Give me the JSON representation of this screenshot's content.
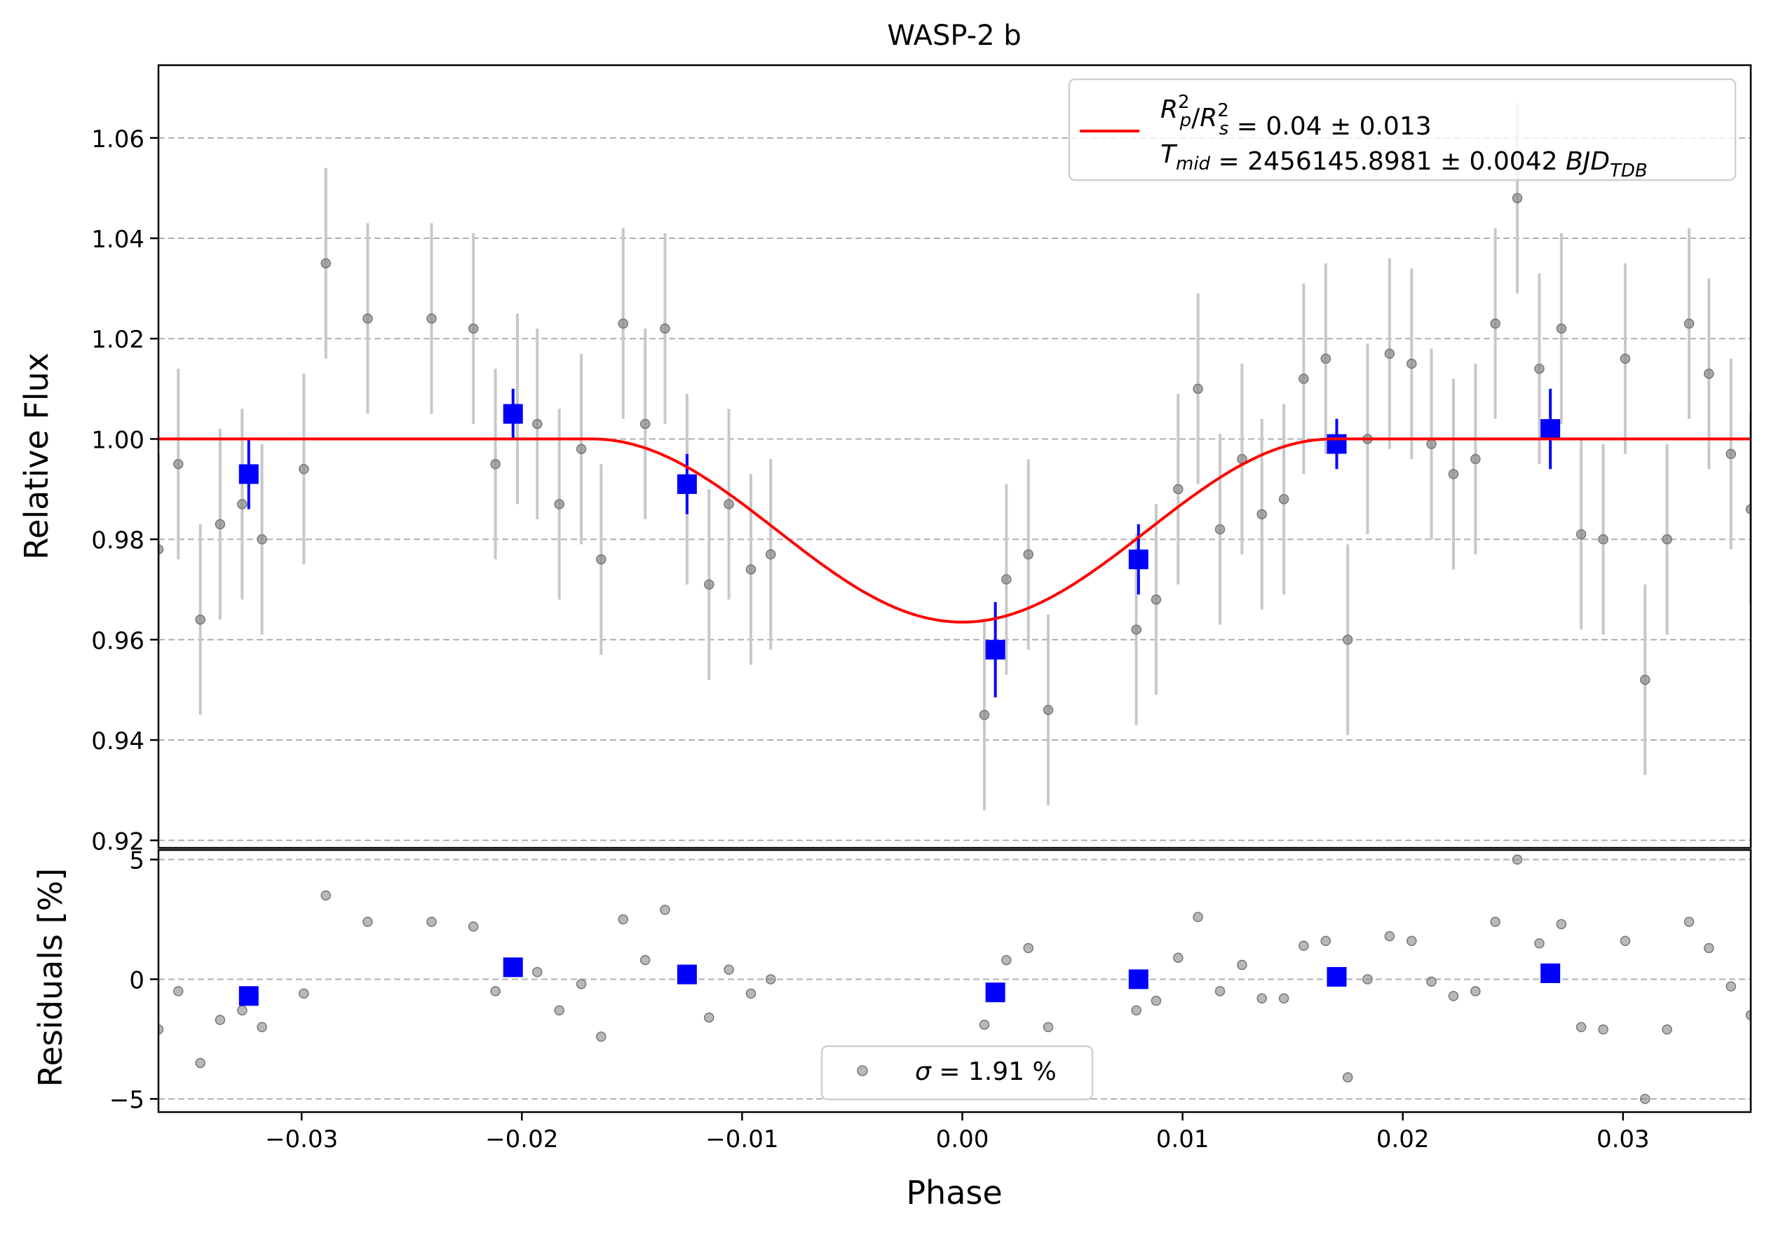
{
  "chart_data": [
    {
      "type": "scatter",
      "panel": "main",
      "title": "WASP-2 b",
      "xlabel": "",
      "ylabel": "Relative Flux",
      "xlim": [
        -0.0365,
        0.0358
      ],
      "ylim": [
        0.9185,
        1.0745
      ],
      "yticks": [
        0.92,
        0.94,
        0.96,
        0.98,
        1.0,
        1.02,
        1.04,
        1.06
      ],
      "ytick_labels": [
        "0.92",
        "0.94",
        "0.96",
        "0.98",
        "1.00",
        "1.02",
        "1.04",
        "1.06"
      ],
      "grid": "y-dashed",
      "legend": {
        "position": "top-right",
        "line1": "R_p^2/R_s^2 = 0.04 ± 0.013",
        "line2": "T_mid = 2456145.8981 ± 0.0042 BJD_TDB",
        "model_color": "#ff0000"
      },
      "colors": {
        "raw": "#888888",
        "raw_err": "#c8c8c8",
        "binned": "#0000ff",
        "model": "#ff0000"
      },
      "series": [
        {
          "kind": "raw",
          "error": 0.019,
          "points": [
            [
              -0.0365,
              0.978
            ],
            [
              -0.0356,
              0.995
            ],
            [
              -0.0346,
              0.964
            ],
            [
              -0.0337,
              0.983
            ],
            [
              -0.0327,
              0.987
            ],
            [
              -0.0318,
              0.98
            ],
            [
              -0.0299,
              0.994
            ],
            [
              -0.0289,
              1.035
            ],
            [
              -0.027,
              1.024
            ],
            [
              -0.0241,
              1.024
            ],
            [
              -0.0222,
              1.022
            ],
            [
              -0.0212,
              0.995
            ],
            [
              -0.0202,
              1.006
            ],
            [
              -0.0193,
              1.003
            ],
            [
              -0.0183,
              0.987
            ],
            [
              -0.0173,
              0.998
            ],
            [
              -0.0164,
              0.976
            ],
            [
              -0.0154,
              1.023
            ],
            [
              -0.0144,
              1.003
            ],
            [
              -0.0135,
              1.022
            ],
            [
              -0.0125,
              0.99
            ],
            [
              -0.0115,
              0.971
            ],
            [
              -0.0106,
              0.987
            ],
            [
              -0.0096,
              0.974
            ],
            [
              -0.0087,
              0.977
            ],
            [
              0.001,
              0.945
            ],
            [
              0.002,
              0.972
            ],
            [
              0.003,
              0.977
            ],
            [
              0.0039,
              0.946
            ],
            [
              0.0079,
              0.962
            ],
            [
              0.0088,
              0.968
            ],
            [
              0.0098,
              0.99
            ],
            [
              0.0107,
              1.01
            ],
            [
              0.0117,
              0.982
            ],
            [
              0.0127,
              0.996
            ],
            [
              0.0136,
              0.985
            ],
            [
              0.0146,
              0.988
            ],
            [
              0.0155,
              1.012
            ],
            [
              0.0165,
              1.016
            ],
            [
              0.0175,
              0.96
            ],
            [
              0.0184,
              1.0
            ],
            [
              0.0194,
              1.017
            ],
            [
              0.0204,
              1.015
            ],
            [
              0.0213,
              0.999
            ],
            [
              0.0223,
              0.993
            ],
            [
              0.0233,
              0.996
            ],
            [
              0.0242,
              1.023
            ],
            [
              0.0252,
              1.048
            ],
            [
              0.0262,
              1.014
            ],
            [
              0.0272,
              1.022
            ],
            [
              0.0281,
              0.981
            ],
            [
              0.0291,
              0.98
            ],
            [
              0.0301,
              1.016
            ],
            [
              0.031,
              0.952
            ],
            [
              0.032,
              0.98
            ],
            [
              0.033,
              1.023
            ],
            [
              0.0339,
              1.013
            ],
            [
              0.0349,
              0.997
            ],
            [
              0.0358,
              0.986
            ]
          ]
        },
        {
          "kind": "binned",
          "points": [
            [
              -0.0324,
              0.993,
              0.007
            ],
            [
              -0.0204,
              1.005,
              0.005
            ],
            [
              -0.0125,
              0.991,
              0.006
            ],
            [
              0.0015,
              0.958,
              0.0095
            ],
            [
              0.008,
              0.976,
              0.007
            ],
            [
              0.017,
              0.999,
              0.005
            ],
            [
              0.0267,
              1.002,
              0.008
            ]
          ]
        },
        {
          "kind": "model",
          "baseline": 1.0,
          "depth": 0.0365,
          "t1": -0.0168,
          "t2": 0.0168
        }
      ]
    },
    {
      "type": "scatter",
      "panel": "residuals",
      "xlabel": "Phase",
      "ylabel": "Residuals [%]",
      "xlim": [
        -0.0365,
        0.0358
      ],
      "ylim": [
        -5.55,
        5.4
      ],
      "yticks": [
        -5,
        0,
        5
      ],
      "ytick_labels": [
        "−5",
        "0",
        "5"
      ],
      "xticks": [
        -0.03,
        -0.02,
        -0.01,
        0.0,
        0.01,
        0.02,
        0.03
      ],
      "xtick_labels": [
        "−0.03",
        "−0.02",
        "−0.01",
        "0.00",
        "0.01",
        "0.02",
        "0.03"
      ],
      "grid": "y-dashed",
      "legend": {
        "position": "lower-center",
        "label": "σ = 1.91 %"
      },
      "raw_points": [
        [
          -0.0365,
          -2.1
        ],
        [
          -0.0356,
          -0.5
        ],
        [
          -0.0346,
          -3.5
        ],
        [
          -0.0337,
          -1.7
        ],
        [
          -0.0327,
          -1.3
        ],
        [
          -0.0318,
          -2.0
        ],
        [
          -0.0299,
          -0.6
        ],
        [
          -0.0289,
          3.5
        ],
        [
          -0.027,
          2.4
        ],
        [
          -0.0241,
          2.4
        ],
        [
          -0.0222,
          2.2
        ],
        [
          -0.0212,
          -0.5
        ],
        [
          -0.0193,
          0.3
        ],
        [
          -0.0183,
          -1.3
        ],
        [
          -0.0173,
          -0.2
        ],
        [
          -0.0164,
          -2.4
        ],
        [
          -0.0154,
          2.5
        ],
        [
          -0.0144,
          0.8
        ],
        [
          -0.0135,
          2.9
        ],
        [
          -0.0115,
          -1.6
        ],
        [
          -0.0106,
          0.4
        ],
        [
          -0.0096,
          -0.6
        ],
        [
          -0.0087,
          0.0
        ],
        [
          0.001,
          -1.9
        ],
        [
          0.002,
          0.8
        ],
        [
          0.003,
          1.3
        ],
        [
          0.0039,
          -2.0
        ],
        [
          0.0079,
          -1.3
        ],
        [
          0.0088,
          -0.9
        ],
        [
          0.0098,
          0.9
        ],
        [
          0.0107,
          2.6
        ],
        [
          0.0117,
          -0.5
        ],
        [
          0.0127,
          0.6
        ],
        [
          0.0136,
          -0.8
        ],
        [
          0.0146,
          -0.8
        ],
        [
          0.0155,
          1.4
        ],
        [
          0.0165,
          1.6
        ],
        [
          0.0175,
          -4.1
        ],
        [
          0.0184,
          0.0
        ],
        [
          0.0194,
          1.8
        ],
        [
          0.0204,
          1.6
        ],
        [
          0.0213,
          -0.1
        ],
        [
          0.0223,
          -0.7
        ],
        [
          0.0233,
          -0.5
        ],
        [
          0.0242,
          2.4
        ],
        [
          0.0252,
          5.0
        ],
        [
          0.0262,
          1.5
        ],
        [
          0.0272,
          2.3
        ],
        [
          0.0281,
          -2.0
        ],
        [
          0.0291,
          -2.1
        ],
        [
          0.0301,
          1.6
        ],
        [
          0.031,
          -5.0
        ],
        [
          0.032,
          -2.1
        ],
        [
          0.033,
          2.4
        ],
        [
          0.0339,
          1.3
        ],
        [
          0.0349,
          -0.3
        ],
        [
          0.0358,
          -1.5
        ]
      ],
      "binned_points": [
        [
          -0.0324,
          -0.7
        ],
        [
          -0.0204,
          0.5
        ],
        [
          -0.0125,
          0.2
        ],
        [
          0.0015,
          -0.55
        ],
        [
          0.008,
          0.0
        ],
        [
          0.017,
          0.1
        ],
        [
          0.0267,
          0.25
        ]
      ]
    }
  ]
}
